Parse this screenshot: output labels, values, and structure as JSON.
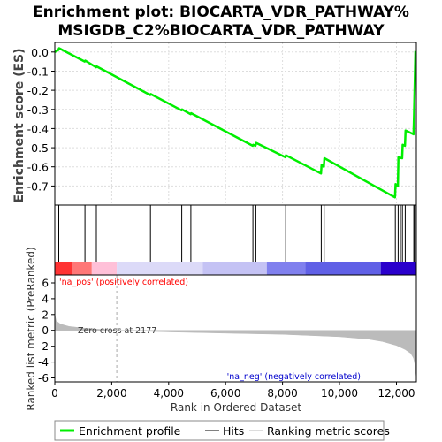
{
  "title_line1": "Enrichment plot: BIOCARTA_VDR_PATHWAY%",
  "title_line2": "MSIGDB_C2%BIOCARTA_VDR_PATHWAY",
  "colors": {
    "es_line": "#00ee00",
    "hits": "#000000",
    "metric_fill": "#bbbbbb",
    "pos_label": "#ff0000",
    "neg_label": "#0000cc",
    "grid": "#dddddd"
  },
  "chart_data": {
    "type": "line",
    "xlabel": "Rank in Ordered Dataset",
    "x_range": [
      0,
      12700
    ],
    "x_ticks": [
      0,
      2000,
      4000,
      6000,
      8000,
      10000,
      12000
    ],
    "x_tick_labels": [
      "0",
      "2,000",
      "4,000",
      "6,000",
      "8,000",
      "10,000",
      "12,000"
    ],
    "es_panel": {
      "ylabel": "Enrichment score (ES)",
      "ylim": [
        -0.8,
        0.05
      ],
      "y_ticks": [
        0.0,
        -0.1,
        -0.2,
        -0.3,
        -0.4,
        -0.5,
        -0.6,
        -0.7
      ],
      "y_tick_labels": [
        "0.0",
        "-0.1",
        "-0.2",
        "-0.3",
        "-0.4",
        "-0.5",
        "-0.6",
        "-0.7"
      ],
      "grid": true,
      "series_name": "Enrichment profile",
      "x": [
        0,
        120,
        150,
        1050,
        1070,
        1450,
        1470,
        3350,
        3370,
        4450,
        4470,
        4770,
        4790,
        6950,
        6970,
        7050,
        7070,
        8100,
        8120,
        9350,
        9370,
        9450,
        9470,
        11950,
        11970,
        12050,
        12070,
        12200,
        12220,
        12300,
        12320,
        12600,
        12620,
        12650,
        12670
      ],
      "y": [
        0.0,
        0.01,
        0.02,
        -0.05,
        -0.045,
        -0.08,
        -0.075,
        -0.225,
        -0.22,
        -0.305,
        -0.3,
        -0.325,
        -0.32,
        -0.49,
        -0.485,
        -0.49,
        -0.475,
        -0.55,
        -0.54,
        -0.635,
        -0.59,
        -0.6,
        -0.555,
        -0.76,
        -0.69,
        -0.7,
        -0.55,
        -0.555,
        -0.485,
        -0.49,
        -0.41,
        -0.43,
        -0.33,
        -0.12,
        0.005
      ]
    },
    "hits": {
      "series_name": "Hits",
      "positions": [
        140,
        1060,
        1460,
        3360,
        4460,
        4780,
        6960,
        7060,
        8110,
        9360,
        9460,
        11960,
        12060,
        12140,
        12210,
        12310,
        12610,
        12640,
        12660
      ]
    },
    "metric_panel": {
      "ylabel": "Ranked list metric (PreRanked)",
      "series_name": "Ranking metric scores",
      "ylim": [
        -6.5,
        7
      ],
      "y_ticks": [
        6,
        4,
        2,
        0,
        -2,
        -4,
        -6
      ],
      "y_tick_labels": [
        "6",
        "4",
        "2",
        "0",
        "-2",
        "-4",
        "-6"
      ],
      "x": [
        0,
        50,
        200,
        500,
        1000,
        1500,
        2177,
        4000,
        6000,
        8000,
        10000,
        11000,
        11500,
        12000,
        12300,
        12500,
        12600,
        12650,
        12680,
        12700
      ],
      "y": [
        2.0,
        1.2,
        0.8,
        0.5,
        0.3,
        0.15,
        0.0,
        -0.2,
        -0.35,
        -0.5,
        -0.8,
        -1.1,
        -1.4,
        -1.9,
        -2.4,
        -2.9,
        -3.5,
        -4.3,
        -5.5,
        -6.0
      ],
      "zero_cross_label": "Zero cross at 2177",
      "zero_cross_x": 2177,
      "pos_label": "'na_pos' (positively correlated)",
      "neg_label": "'na_neg' (negatively correlated)"
    },
    "color_bar": [
      {
        "x0": 0,
        "x1": 600,
        "color": "#ff3333"
      },
      {
        "x0": 600,
        "x1": 1300,
        "color": "#ff7777"
      },
      {
        "x0": 1300,
        "x1": 2177,
        "color": "#ffc0d8"
      },
      {
        "x0": 2177,
        "x1": 5200,
        "color": "#dcdaf8"
      },
      {
        "x0": 5200,
        "x1": 7450,
        "color": "#c4c2f4"
      },
      {
        "x0": 7450,
        "x1": 8800,
        "color": "#8080ee"
      },
      {
        "x0": 8800,
        "x1": 11450,
        "color": "#6060e6"
      },
      {
        "x0": 11450,
        "x1": 12700,
        "color": "#2a00cc"
      }
    ],
    "legend": {
      "placement": "bottom",
      "entries": [
        "Enrichment profile",
        "Hits",
        "Ranking metric scores"
      ]
    }
  }
}
